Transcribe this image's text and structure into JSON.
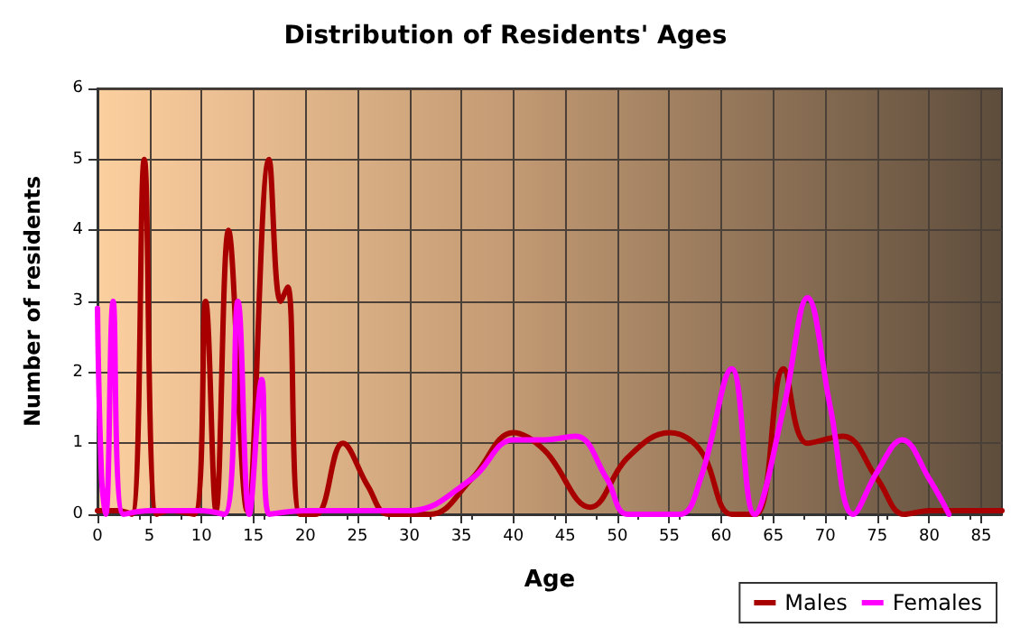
{
  "chart_data": {
    "type": "line",
    "title": "Distribution of Residents' Ages",
    "xlabel": "Age",
    "ylabel": "Number of residents",
    "xlim": [
      0,
      87
    ],
    "xticks": [
      0,
      5,
      10,
      15,
      20,
      25,
      30,
      35,
      40,
      45,
      50,
      55,
      60,
      65,
      70,
      75,
      80,
      85
    ],
    "ylim": [
      0,
      6
    ],
    "yticks": [
      0,
      1,
      2,
      3,
      4,
      5,
      6
    ],
    "grid": true,
    "legend": "bottom right",
    "marker": "none",
    "line_style": "solid",
    "series": [
      {
        "name": "Males",
        "color": "#a80000",
        "x": [
          0,
          2,
          3.3,
          4.5,
          5.7,
          7,
          9.3,
          10.4,
          11.4,
          12.6,
          14.4,
          16.5,
          17.6,
          18.3,
          19.5,
          21,
          23.6,
          26,
          28,
          32,
          36,
          40,
          43,
          47.4,
          51,
          55,
          58,
          61,
          63.3,
          66,
          68.3,
          71.7,
          75,
          77.6,
          80,
          87
        ],
        "values": [
          0.05,
          0.05,
          0,
          5,
          0,
          0.05,
          0,
          3,
          0.05,
          4,
          0.05,
          5,
          3,
          3.2,
          0,
          0,
          1,
          0.4,
          0,
          0,
          0.5,
          1.15,
          0.9,
          0.1,
          0.8,
          1.15,
          0.9,
          0,
          0,
          2.05,
          1,
          1.1,
          0.5,
          0,
          0.05,
          0.05
        ]
      },
      {
        "name": "Females",
        "color": "#ff00ff",
        "x": [
          0,
          0.4,
          0.8,
          1.5,
          2.5,
          5,
          10,
          12.2,
          13.5,
          14.6,
          15.8,
          16.5,
          20,
          30,
          36,
          40,
          43,
          46,
          49,
          51,
          56,
          58,
          61,
          63.2,
          66,
          68.3,
          70.5,
          72.7,
          75,
          77.4,
          80,
          81.9
        ],
        "values": [
          2.9,
          0.5,
          0,
          3,
          0,
          0.05,
          0.05,
          0,
          3,
          0,
          1.9,
          0,
          0.05,
          0.05,
          0.5,
          1.05,
          1.05,
          1.1,
          0.5,
          0,
          0,
          0.5,
          2.05,
          0,
          1.5,
          3.05,
          1.5,
          0,
          0.6,
          1.05,
          0.5,
          0
        ]
      }
    ]
  }
}
